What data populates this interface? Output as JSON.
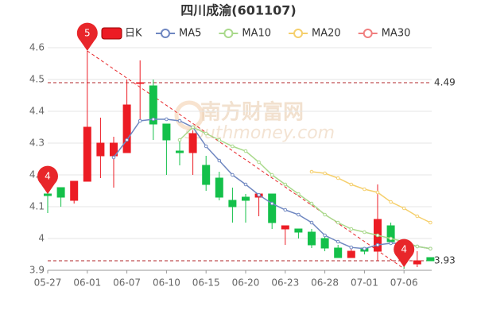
{
  "chart_data": {
    "type": "candlestick",
    "title": "四川成渝(601107)",
    "watermark": [
      "南方财富网",
      "southmoney.com"
    ],
    "categories": [
      "05-27",
      null,
      null,
      "06-01",
      null,
      null,
      "06-07",
      null,
      null,
      "06-10",
      null,
      null,
      "06-15",
      null,
      null,
      "06-20",
      null,
      null,
      "06-23",
      null,
      null,
      "06-28",
      null,
      null,
      "07-01",
      null,
      null,
      "07-06",
      null,
      null
    ],
    "candles": {
      "name": "日K",
      "up_color": "#ec1c24",
      "down_color": "#14c04a",
      "open": [
        4.14,
        4.16,
        4.12,
        4.18,
        4.26,
        4.26,
        4.27,
        4.49,
        4.48,
        4.36,
        4.275,
        4.27,
        4.23,
        4.19,
        4.12,
        4.13,
        4.13,
        4.14,
        4.03,
        4.03,
        4.02,
        4.0,
        3.97,
        3.94,
        3.97,
        3.96,
        4.04,
        3.98,
        3.92,
        3.94
      ],
      "close": [
        4.135,
        4.13,
        4.18,
        4.35,
        4.3,
        4.3,
        4.42,
        4.49,
        4.36,
        4.31,
        4.27,
        4.33,
        4.17,
        4.13,
        4.1,
        4.12,
        4.14,
        4.05,
        4.04,
        4.02,
        3.98,
        3.97,
        3.94,
        3.96,
        3.96,
        4.06,
        3.99,
        3.96,
        3.93,
        3.93
      ],
      "high": [
        4.15,
        4.16,
        4.18,
        4.59,
        4.38,
        4.32,
        4.5,
        4.56,
        4.5,
        4.36,
        4.31,
        4.34,
        4.26,
        4.21,
        4.16,
        4.14,
        4.14,
        4.14,
        4.04,
        4.03,
        4.03,
        4.01,
        3.98,
        3.97,
        3.97,
        4.17,
        4.05,
        3.98,
        3.96,
        3.94
      ],
      "low": [
        4.08,
        4.1,
        4.11,
        4.18,
        4.19,
        4.16,
        4.27,
        4.37,
        4.31,
        4.2,
        4.23,
        4.2,
        4.15,
        4.12,
        4.05,
        4.05,
        4.07,
        4.03,
        3.98,
        4.0,
        3.97,
        3.96,
        3.94,
        3.94,
        3.95,
        3.93,
        3.98,
        3.905,
        3.91,
        3.93
      ]
    },
    "series": [
      {
        "name": "MA5",
        "color": "#6f87c1",
        "values": [
          null,
          null,
          null,
          null,
          null,
          4.255,
          4.31,
          4.37,
          4.375,
          4.375,
          4.37,
          4.35,
          4.29,
          4.245,
          4.2,
          4.17,
          4.137,
          4.11,
          4.09,
          4.075,
          4.05,
          4.01,
          3.99,
          3.972,
          3.968,
          3.98,
          3.985,
          3.985,
          3.975,
          3.968
        ]
      },
      {
        "name": "MA10",
        "color": "#a9d98b",
        "values": [
          null,
          null,
          null,
          null,
          null,
          null,
          null,
          null,
          null,
          null,
          4.31,
          4.35,
          4.33,
          4.31,
          4.29,
          4.275,
          4.24,
          4.2,
          4.17,
          4.14,
          4.11,
          4.075,
          4.05,
          4.03,
          4.02,
          4.01,
          4.0,
          3.99,
          3.975,
          3.968
        ]
      },
      {
        "name": "MA20",
        "color": "#f5cf6c",
        "values": [
          null,
          null,
          null,
          null,
          null,
          null,
          null,
          null,
          null,
          null,
          null,
          null,
          null,
          null,
          null,
          null,
          null,
          null,
          null,
          null,
          4.21,
          4.205,
          4.19,
          4.17,
          4.155,
          4.145,
          4.115,
          4.095,
          4.07,
          4.05
        ]
      },
      {
        "name": "MA30",
        "color": "#f07f7f",
        "values": [
          null,
          null,
          null,
          null,
          null,
          null,
          null,
          null,
          null,
          null,
          null,
          null,
          null,
          null,
          null,
          null,
          null,
          null,
          null,
          null,
          null,
          null,
          null,
          null,
          null,
          null,
          null,
          null,
          null,
          null
        ]
      }
    ],
    "mark_lines": [
      4.49,
      3.93
    ],
    "mark_line_color": "#b0262a",
    "pins": [
      {
        "label": "5",
        "index": 3,
        "value": 4.59
      },
      {
        "label": "4",
        "index": 0,
        "value": 4.14
      },
      {
        "label": "4",
        "index": 27,
        "value": 3.91
      }
    ],
    "pin_color": "#e8262a",
    "ylim": [
      3.9,
      4.6
    ],
    "yticks": [
      3.9,
      4,
      4.1,
      4.2,
      4.3,
      4.4,
      4.5,
      4.6
    ],
    "grid": true
  }
}
